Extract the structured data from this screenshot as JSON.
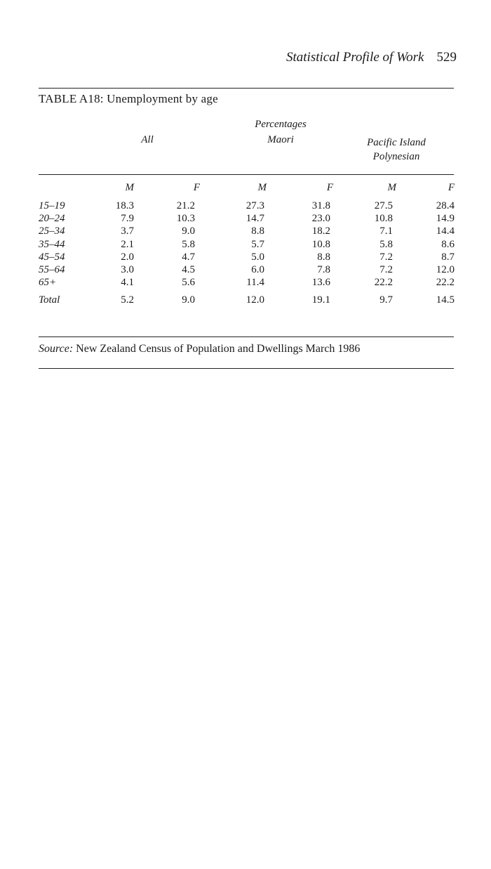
{
  "running_head": {
    "title": "Statistical Profile of Work",
    "page_number": "529"
  },
  "table": {
    "title": "TABLE A18: Unemployment by age",
    "unit_label": "Percentages",
    "groups": [
      {
        "label": "All"
      },
      {
        "label": "Maori"
      },
      {
        "label_line1": "Pacific Island",
        "label_line2": "Polynesian"
      }
    ],
    "sub_headers": [
      "M",
      "F",
      "M",
      "F",
      "M",
      "F"
    ],
    "rows": [
      {
        "age": "15–19",
        "values": [
          "18.3",
          "21.2",
          "27.3",
          "31.8",
          "27.5",
          "28.4"
        ]
      },
      {
        "age": "20–24",
        "values": [
          "7.9",
          "10.3",
          "14.7",
          "23.0",
          "10.8",
          "14.9"
        ]
      },
      {
        "age": "25–34",
        "values": [
          "3.7",
          "9.0",
          "8.8",
          "18.2",
          "7.1",
          "14.4"
        ]
      },
      {
        "age": "35–44",
        "values": [
          "2.1",
          "5.8",
          "5.7",
          "10.8",
          "5.8",
          "8.6"
        ]
      },
      {
        "age": "45–54",
        "values": [
          "2.0",
          "4.7",
          "5.0",
          "8.8",
          "7.2",
          "8.7"
        ]
      },
      {
        "age": "55–64",
        "values": [
          "3.0",
          "4.5",
          "6.0",
          "7.8",
          "7.2",
          "12.0"
        ]
      },
      {
        "age": "65+",
        "values": [
          "4.1",
          "5.6",
          "11.4",
          "13.6",
          "22.2",
          "22.2"
        ]
      }
    ],
    "total": {
      "age": "Total",
      "values": [
        "5.2",
        "9.0",
        "12.0",
        "19.1",
        "9.7",
        "14.5"
      ]
    }
  },
  "source": {
    "label": "Source:",
    "text": "New Zealand Census of Population and Dwellings March 1986"
  }
}
